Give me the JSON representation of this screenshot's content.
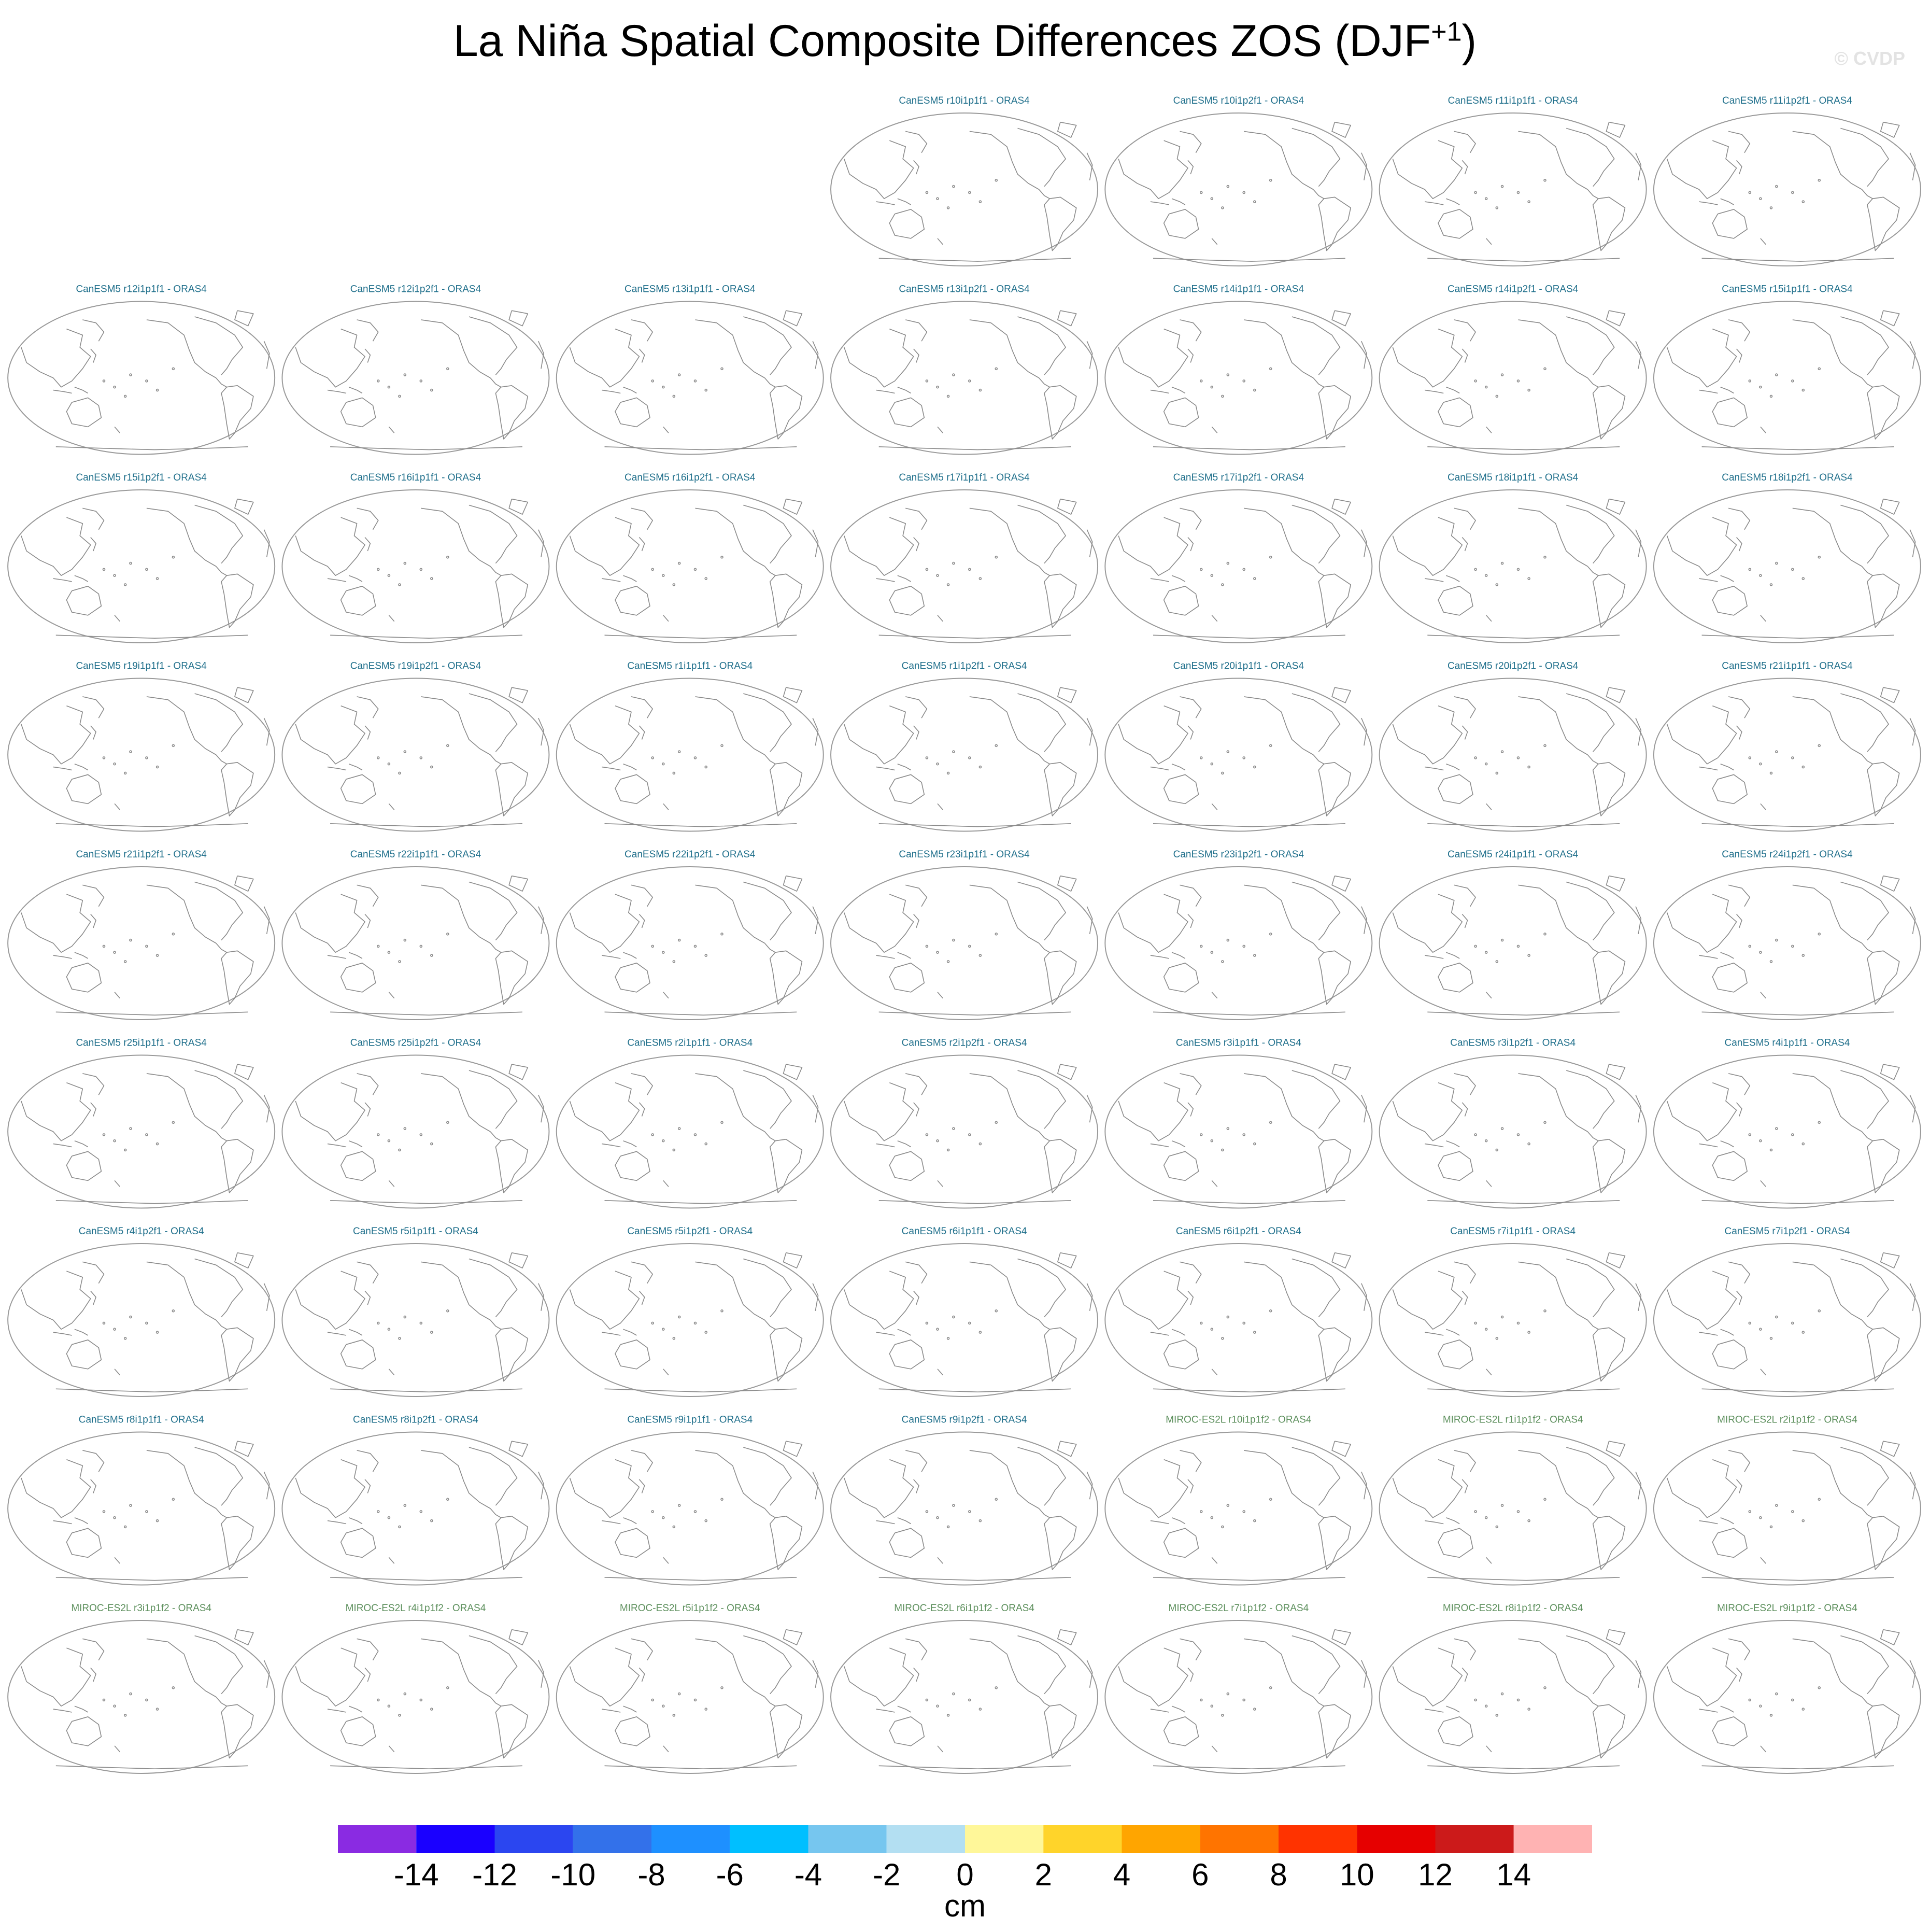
{
  "title": {
    "main": "La Niña Spatial Composite Differences ZOS (DJF",
    "superscript": "+1",
    "close": ")"
  },
  "watermark": "© CVDP",
  "colors": {
    "canesm_title": "#1f6f8b",
    "miroc_title": "#5c8f5c",
    "map_outline": "#9a9a9a",
    "coastline": "#8a8a8a"
  },
  "chart_data": {
    "type": "map-panel-grid",
    "title": "La Niña Spatial Composite Differences ZOS (DJF+1)",
    "rows": 9,
    "columns": 7,
    "blank_slots_row1": 3,
    "projection": "robinson, Pacific-centered",
    "panels": [
      {
        "label": "CanESM5 r10i1p1f1 - ORAS4",
        "model": "CanESM5"
      },
      {
        "label": "CanESM5 r10i1p2f1 - ORAS4",
        "model": "CanESM5"
      },
      {
        "label": "CanESM5 r11i1p1f1 - ORAS4",
        "model": "CanESM5"
      },
      {
        "label": "CanESM5 r11i1p2f1 - ORAS4",
        "model": "CanESM5"
      },
      {
        "label": "CanESM5 r12i1p1f1 - ORAS4",
        "model": "CanESM5"
      },
      {
        "label": "CanESM5 r12i1p2f1 - ORAS4",
        "model": "CanESM5"
      },
      {
        "label": "CanESM5 r13i1p1f1 - ORAS4",
        "model": "CanESM5"
      },
      {
        "label": "CanESM5 r13i1p2f1 - ORAS4",
        "model": "CanESM5"
      },
      {
        "label": "CanESM5 r14i1p1f1 - ORAS4",
        "model": "CanESM5"
      },
      {
        "label": "CanESM5 r14i1p2f1 - ORAS4",
        "model": "CanESM5"
      },
      {
        "label": "CanESM5 r15i1p1f1 - ORAS4",
        "model": "CanESM5"
      },
      {
        "label": "CanESM5 r15i1p2f1 - ORAS4",
        "model": "CanESM5"
      },
      {
        "label": "CanESM5 r16i1p1f1 - ORAS4",
        "model": "CanESM5"
      },
      {
        "label": "CanESM5 r16i1p2f1 - ORAS4",
        "model": "CanESM5"
      },
      {
        "label": "CanESM5 r17i1p1f1 - ORAS4",
        "model": "CanESM5"
      },
      {
        "label": "CanESM5 r17i1p2f1 - ORAS4",
        "model": "CanESM5"
      },
      {
        "label": "CanESM5 r18i1p1f1 - ORAS4",
        "model": "CanESM5"
      },
      {
        "label": "CanESM5 r18i1p2f1 - ORAS4",
        "model": "CanESM5"
      },
      {
        "label": "CanESM5 r19i1p1f1 - ORAS4",
        "model": "CanESM5"
      },
      {
        "label": "CanESM5 r19i1p2f1 - ORAS4",
        "model": "CanESM5"
      },
      {
        "label": "CanESM5 r1i1p1f1 - ORAS4",
        "model": "CanESM5"
      },
      {
        "label": "CanESM5 r1i1p2f1 - ORAS4",
        "model": "CanESM5"
      },
      {
        "label": "CanESM5 r20i1p1f1 - ORAS4",
        "model": "CanESM5"
      },
      {
        "label": "CanESM5 r20i1p2f1 - ORAS4",
        "model": "CanESM5"
      },
      {
        "label": "CanESM5 r21i1p1f1 - ORAS4",
        "model": "CanESM5"
      },
      {
        "label": "CanESM5 r21i1p2f1 - ORAS4",
        "model": "CanESM5"
      },
      {
        "label": "CanESM5 r22i1p1f1 - ORAS4",
        "model": "CanESM5"
      },
      {
        "label": "CanESM5 r22i1p2f1 - ORAS4",
        "model": "CanESM5"
      },
      {
        "label": "CanESM5 r23i1p1f1 - ORAS4",
        "model": "CanESM5"
      },
      {
        "label": "CanESM5 r23i1p2f1 - ORAS4",
        "model": "CanESM5"
      },
      {
        "label": "CanESM5 r24i1p1f1 - ORAS4",
        "model": "CanESM5"
      },
      {
        "label": "CanESM5 r24i1p2f1 - ORAS4",
        "model": "CanESM5"
      },
      {
        "label": "CanESM5 r25i1p1f1 - ORAS4",
        "model": "CanESM5"
      },
      {
        "label": "CanESM5 r25i1p2f1 - ORAS4",
        "model": "CanESM5"
      },
      {
        "label": "CanESM5 r2i1p1f1 - ORAS4",
        "model": "CanESM5"
      },
      {
        "label": "CanESM5 r2i1p2f1 - ORAS4",
        "model": "CanESM5"
      },
      {
        "label": "CanESM5 r3i1p1f1 - ORAS4",
        "model": "CanESM5"
      },
      {
        "label": "CanESM5 r3i1p2f1 - ORAS4",
        "model": "CanESM5"
      },
      {
        "label": "CanESM5 r4i1p1f1 - ORAS4",
        "model": "CanESM5"
      },
      {
        "label": "CanESM5 r4i1p2f1 - ORAS4",
        "model": "CanESM5"
      },
      {
        "label": "CanESM5 r5i1p1f1 - ORAS4",
        "model": "CanESM5"
      },
      {
        "label": "CanESM5 r5i1p2f1 - ORAS4",
        "model": "CanESM5"
      },
      {
        "label": "CanESM5 r6i1p1f1 - ORAS4",
        "model": "CanESM5"
      },
      {
        "label": "CanESM5 r6i1p2f1 - ORAS4",
        "model": "CanESM5"
      },
      {
        "label": "CanESM5 r7i1p1f1 - ORAS4",
        "model": "CanESM5"
      },
      {
        "label": "CanESM5 r7i1p2f1 - ORAS4",
        "model": "CanESM5"
      },
      {
        "label": "CanESM5 r8i1p1f1 - ORAS4",
        "model": "CanESM5"
      },
      {
        "label": "CanESM5 r8i1p2f1 - ORAS4",
        "model": "CanESM5"
      },
      {
        "label": "CanESM5 r9i1p1f1 - ORAS4",
        "model": "CanESM5"
      },
      {
        "label": "CanESM5 r9i1p2f1 - ORAS4",
        "model": "CanESM5"
      },
      {
        "label": "MIROC-ES2L r10i1p1f2 - ORAS4",
        "model": "MIROC-ES2L"
      },
      {
        "label": "MIROC-ES2L r1i1p1f2 - ORAS4",
        "model": "MIROC-ES2L"
      },
      {
        "label": "MIROC-ES2L r2i1p1f2 - ORAS4",
        "model": "MIROC-ES2L"
      },
      {
        "label": "MIROC-ES2L r3i1p1f2 - ORAS4",
        "model": "MIROC-ES2L"
      },
      {
        "label": "MIROC-ES2L r4i1p1f2 - ORAS4",
        "model": "MIROC-ES2L"
      },
      {
        "label": "MIROC-ES2L r5i1p1f2 - ORAS4",
        "model": "MIROC-ES2L"
      },
      {
        "label": "MIROC-ES2L r6i1p1f2 - ORAS4",
        "model": "MIROC-ES2L"
      },
      {
        "label": "MIROC-ES2L r7i1p1f2 - ORAS4",
        "model": "MIROC-ES2L"
      },
      {
        "label": "MIROC-ES2L r8i1p1f2 - ORAS4",
        "model": "MIROC-ES2L"
      },
      {
        "label": "MIROC-ES2L r9i1p1f2 - ORAS4",
        "model": "MIROC-ES2L"
      }
    ],
    "colorbar": {
      "unit": "cm",
      "levels": [
        -14,
        -12,
        -10,
        -8,
        -6,
        -4,
        -2,
        0,
        2,
        4,
        6,
        8,
        10,
        12,
        14
      ],
      "colors": [
        "#8a2be2",
        "#1a00ff",
        "#2b46f0",
        "#3371ea",
        "#1e90ff",
        "#00bfff",
        "#76c6ef",
        "#b3dff2",
        "#fff799",
        "#ffd42a",
        "#ffa500",
        "#ff7400",
        "#ff3300",
        "#e60000",
        "#cc1a1a",
        "#ffb3b3"
      ]
    }
  }
}
